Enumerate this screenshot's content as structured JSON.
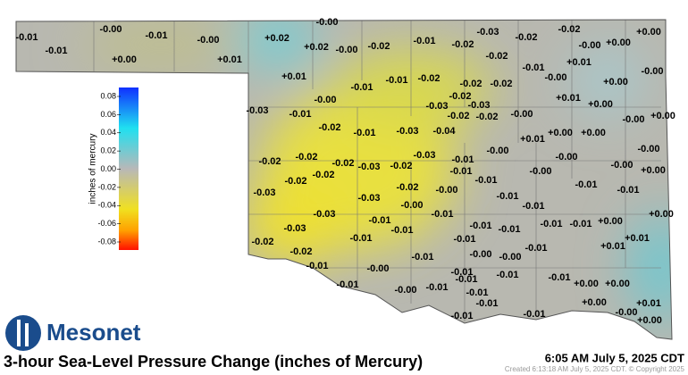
{
  "map": {
    "stations": [
      "-0.01",
      "-0.01",
      "-0.00",
      "-0.01",
      "-0.00",
      "+0.00",
      "+0.01",
      "+0.02",
      "+0.02",
      "-0.00",
      "-0.00",
      "-0.02",
      "-0.01",
      "-0.02",
      "-0.03",
      "-0.02",
      "-0.02",
      "-0.00",
      "+0.00",
      "+0.00",
      "-0.02",
      "-0.01",
      "+0.01",
      "-0.00",
      "+0.00",
      "-0.00",
      "+0.01",
      "-0.01",
      "-0.01",
      "-0.02",
      "-0.02",
      "-0.02",
      "-0.00",
      "-0.03",
      "-0.01",
      "-0.02",
      "-0.03",
      "-0.03",
      "-0.02",
      "-0.02",
      "-0.00",
      "+0.01",
      "+0.00",
      "-0.00",
      "+0.00",
      "-0.02",
      "-0.01",
      "-0.03",
      "-0.04",
      "+0.01",
      "+0.00",
      "+0.00",
      "-0.00",
      "-0.02",
      "-0.02",
      "-0.02",
      "-0.03",
      "-0.02",
      "-0.03",
      "-0.01",
      "-0.00",
      "-0.00",
      "-0.02",
      "-0.02",
      "-0.01",
      "-0.01",
      "-0.00",
      "-0.00",
      "+0.00",
      "-0.03",
      "-0.03",
      "-0.02",
      "-0.00",
      "-0.01",
      "-0.01",
      "-0.01",
      "-0.00",
      "-0.03",
      "-0.01",
      "-0.01",
      "-0.01",
      "+0.00",
      "-0.03",
      "-0.01",
      "-0.01",
      "-0.01",
      "-0.01",
      "-0.01",
      "+0.00",
      "-0.02",
      "-0.01",
      "-0.01",
      "+0.01",
      "+0.01",
      "-0.02",
      "-0.01",
      "-0.00",
      "-0.00",
      "-0.01",
      "-0.01",
      "-0.00",
      "-0.01",
      "-0.01",
      "-0.01",
      "-0.01",
      "-0.00",
      "-0.01",
      "-0.01",
      "-0.01",
      "+0.00",
      "+0.00",
      "-0.01",
      "+0.00",
      "+0.01",
      "-0.00",
      "-0.01",
      "-0.01",
      "+0.00"
    ],
    "colorbar": {
      "label": "inches of mercury",
      "ticks": [
        "0.08",
        "0.06",
        "0.04",
        "0.02",
        "0.00",
        "-0.02",
        "-0.04",
        "-0.06",
        "-0.08"
      ]
    }
  },
  "logo": "Mesonet",
  "title": "3-hour Sea-Level Pressure Change (inches of Mercury)",
  "timestamp": "6:05 AM July 5, 2025 CDT",
  "created": "Created 6:13:18 AM July 5, 2025 CDT. © Copyright 2025"
}
